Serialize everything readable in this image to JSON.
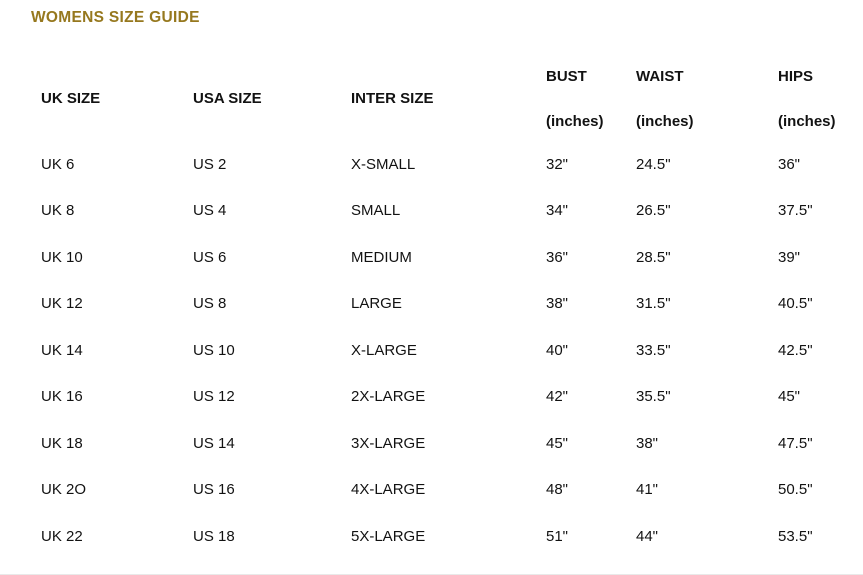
{
  "page": {
    "title": "WOMENS SIZE GUIDE",
    "title_color": "#96781e",
    "text_color": "#121212",
    "background_color": "#ffffff",
    "bottom_divider_color": "#e9e9e9"
  },
  "size_guide_table": {
    "columns": [
      {
        "key": "uk-size",
        "label": "UK SIZE",
        "sublabel": null
      },
      {
        "key": "usa-size",
        "label": "USA SIZE",
        "sublabel": null
      },
      {
        "key": "inter-size",
        "label": "INTER SIZE",
        "sublabel": null
      },
      {
        "key": "bust",
        "label": "BUST",
        "sublabel": "(inches)"
      },
      {
        "key": "waist",
        "label": "WAIST",
        "sublabel": "(inches)"
      },
      {
        "key": "hips",
        "label": "HIPS",
        "sublabel": "(inches)"
      }
    ],
    "rows": [
      [
        "UK 6",
        "US 2",
        "X-SMALL",
        "32\"",
        "24.5\"",
        "36\""
      ],
      [
        "UK 8",
        "US 4",
        "SMALL",
        "34\"",
        "26.5\"",
        "37.5\""
      ],
      [
        "UK 10",
        "US 6",
        "MEDIUM",
        "36\"",
        "28.5\"",
        "39\""
      ],
      [
        "UK 12",
        "US 8",
        "LARGE",
        "38\"",
        "31.5\"",
        "40.5\""
      ],
      [
        "UK 14",
        "US 10",
        "X-LARGE",
        "40\"",
        "33.5\"",
        "42.5\""
      ],
      [
        "UK 16",
        "US 12",
        "2X-LARGE",
        "42\"",
        "35.5\"",
        "45\""
      ],
      [
        "UK 18",
        "US 14",
        "3X-LARGE",
        "45\"",
        "38\"",
        "47.5\""
      ],
      [
        "UK 2O",
        "US 16",
        "4X-LARGE",
        "48\"",
        "41\"",
        "50.5\""
      ],
      [
        "UK 22",
        "US 18",
        "5X-LARGE",
        "51\"",
        "44\"",
        "53.5\""
      ]
    ]
  }
}
